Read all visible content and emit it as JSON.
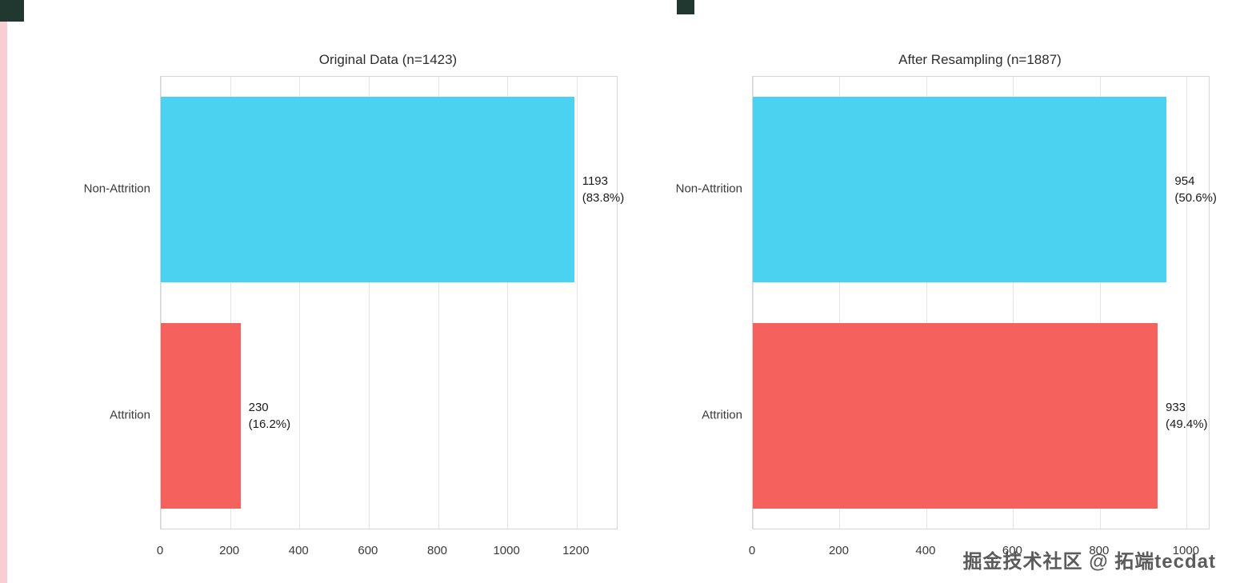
{
  "watermark": "掘金技术社区 @ 拓端tecdat",
  "colors": {
    "non_attrition_bar": "#4bd2f0",
    "attrition_bar": "#f5625e",
    "gridline": "#e4e4e4",
    "plot_border": "#d6d6d6"
  },
  "chart_data": [
    {
      "type": "bar",
      "orientation": "horizontal",
      "title": "Original Data (n=1423)",
      "n_total": 1423,
      "categories": [
        "Non-Attrition",
        "Attrition"
      ],
      "values": [
        1193,
        230
      ],
      "percentages": [
        83.8,
        16.2
      ],
      "bar_labels": [
        [
          "1193",
          "(83.8%)"
        ],
        [
          "230",
          "(16.2%)"
        ]
      ],
      "bar_colors": [
        "#4bd2f0",
        "#f5625e"
      ],
      "xlim": [
        0,
        1316
      ],
      "xtick_values": [
        0,
        200,
        400,
        600,
        800,
        1000,
        1200
      ],
      "xticks": [
        "0",
        "200",
        "400",
        "600",
        "800",
        "1000",
        "1200"
      ],
      "grid": "vertical",
      "legend": "none",
      "xlabel": "",
      "ylabel": ""
    },
    {
      "type": "bar",
      "orientation": "horizontal",
      "title": "After Resampling (n=1887)",
      "n_total": 1887,
      "categories": [
        "Non-Attrition",
        "Attrition"
      ],
      "values": [
        954,
        933
      ],
      "percentages": [
        50.6,
        49.4
      ],
      "bar_labels": [
        [
          "954",
          "(50.6%)"
        ],
        [
          "933",
          "(49.4%)"
        ]
      ],
      "bar_colors": [
        "#4bd2f0",
        "#f5625e"
      ],
      "xlim": [
        0,
        1051
      ],
      "xtick_values": [
        0,
        200,
        400,
        600,
        800,
        1000
      ],
      "xticks": [
        "0",
        "200",
        "400",
        "600",
        "800",
        "1000"
      ],
      "grid": "vertical",
      "legend": "none",
      "xlabel": "",
      "ylabel": ""
    }
  ]
}
